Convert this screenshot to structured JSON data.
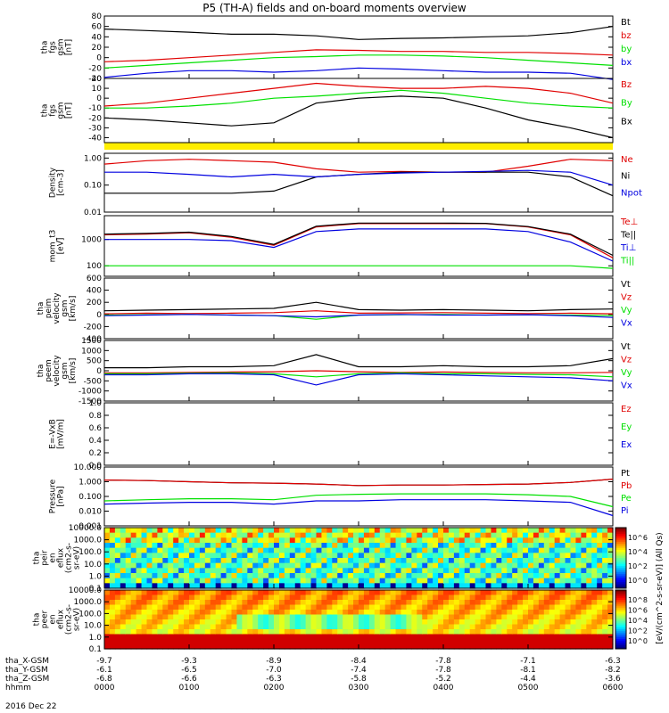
{
  "title": "P5 (TH-A) fields and on-board moments overview",
  "date_label": "2016 Dec 22",
  "footer": {
    "rows": [
      {
        "label": "tha_X-GSM",
        "values": [
          "-9.7",
          "-9.3",
          "-8.9",
          "-8.4",
          "-7.8",
          "-7.1",
          "-6.3"
        ]
      },
      {
        "label": "tha_Y-GSM",
        "values": [
          "-6.1",
          "-6.5",
          "-7.0",
          "-7.4",
          "-7.8",
          "-8.1",
          "-8.2"
        ]
      },
      {
        "label": "tha_Z-GSM",
        "values": [
          "-6.8",
          "-6.6",
          "-6.3",
          "-5.8",
          "-5.2",
          "-4.4",
          "-3.6"
        ]
      },
      {
        "label": "hhmm",
        "values": [
          "0000",
          "0100",
          "0200",
          "0300",
          "0400",
          "0500",
          "0600"
        ]
      }
    ]
  },
  "colors": {
    "black": "#000000",
    "red": "#e00000",
    "green": "#00e000",
    "blue": "#0000e0",
    "yellow": "#ffee00"
  },
  "chart_data": [
    {
      "type": "line",
      "ylabel_lines": [
        "tha",
        "fgs",
        "gsm",
        "[nT]"
      ],
      "ylim": [
        -40,
        80
      ],
      "yticks": [
        "80",
        "60",
        "40",
        "20",
        "0",
        "-20",
        "-40"
      ],
      "legend": [
        "Bt",
        "bz",
        "by",
        "bx"
      ],
      "x": [
        0,
        0.5,
        1,
        1.5,
        2,
        2.5,
        3,
        3.5,
        4,
        4.5,
        5,
        5.5,
        6
      ],
      "series": [
        {
          "name": "Bt",
          "color": "#000000",
          "values": [
            55,
            52,
            49,
            45,
            45,
            42,
            35,
            37,
            38,
            40,
            42,
            48,
            60
          ]
        },
        {
          "name": "bz",
          "color": "#e00000",
          "values": [
            -8,
            -5,
            0,
            5,
            10,
            15,
            14,
            12,
            12,
            10,
            10,
            8,
            5
          ]
        },
        {
          "name": "by",
          "color": "#00e000",
          "values": [
            -20,
            -15,
            -10,
            -5,
            0,
            2,
            5,
            5,
            3,
            0,
            -5,
            -10,
            -15
          ]
        },
        {
          "name": "bx",
          "color": "#0000e0",
          "values": [
            -38,
            -30,
            -25,
            -25,
            -28,
            -25,
            -20,
            -22,
            -25,
            -28,
            -28,
            -30,
            -42
          ]
        }
      ]
    },
    {
      "type": "line",
      "ylabel_lines": [
        "tha",
        "fgs",
        "gsm",
        "[nT]"
      ],
      "ylim": [
        -45,
        20
      ],
      "yticks": [
        "20",
        "10",
        "0",
        "-10",
        "-20",
        "-30",
        "-40"
      ],
      "legend": [
        "Bz",
        "By",
        "Bx"
      ],
      "x": [
        0,
        0.5,
        1,
        1.5,
        2,
        2.5,
        3,
        3.5,
        4,
        4.5,
        5,
        5.5,
        6
      ],
      "series": [
        {
          "name": "Bz",
          "color": "#e00000",
          "values": [
            -8,
            -5,
            0,
            5,
            10,
            15,
            12,
            10,
            10,
            12,
            10,
            5,
            -5
          ]
        },
        {
          "name": "By",
          "color": "#00e000",
          "values": [
            -10,
            -10,
            -8,
            -5,
            0,
            2,
            5,
            8,
            5,
            0,
            -5,
            -8,
            -10
          ]
        },
        {
          "name": "Bx",
          "color": "#000000",
          "values": [
            -20,
            -22,
            -25,
            -28,
            -25,
            -5,
            0,
            2,
            0,
            -10,
            -22,
            -30,
            -40
          ]
        }
      ]
    },
    {
      "type": "line",
      "ylabel_lines": [
        "Density",
        "[cm-3]"
      ],
      "ylim": [
        0.01,
        1.5
      ],
      "yscale": "log",
      "yticks": [
        "1.00",
        "0.10",
        "0.01"
      ],
      "legend": [
        "Ne",
        "Ni",
        "Npot"
      ],
      "x": [
        0,
        0.5,
        1,
        1.5,
        2,
        2.5,
        3,
        3.5,
        4,
        4.5,
        5,
        5.5,
        6
      ],
      "series": [
        {
          "name": "Ne",
          "color": "#e00000",
          "values": [
            0.6,
            0.8,
            0.9,
            0.8,
            0.7,
            0.4,
            0.3,
            0.32,
            0.3,
            0.3,
            0.5,
            0.9,
            0.8
          ]
        },
        {
          "name": "Ni",
          "color": "#000000",
          "values": [
            0.05,
            0.05,
            0.05,
            0.05,
            0.06,
            0.2,
            0.25,
            0.3,
            0.3,
            0.3,
            0.3,
            0.2,
            0.04
          ]
        },
        {
          "name": "Npot",
          "color": "#0000e0",
          "values": [
            0.3,
            0.3,
            0.25,
            0.2,
            0.25,
            0.2,
            0.25,
            0.28,
            0.3,
            0.32,
            0.35,
            0.3,
            0.1
          ]
        }
      ]
    },
    {
      "type": "line",
      "ylabel_lines": [
        "mom_t3",
        "[eV]"
      ],
      "ylim": [
        40,
        8000
      ],
      "yscale": "log",
      "yticks": [
        "1000",
        "100"
      ],
      "legend": [
        "Te⊥",
        "Te||",
        "Ti⊥",
        "Ti||"
      ],
      "x": [
        0,
        0.5,
        1,
        1.5,
        2,
        2.5,
        3,
        3.5,
        4,
        4.5,
        5,
        5.5,
        6
      ],
      "series": [
        {
          "name": "Te⊥",
          "color": "#e00000",
          "values": [
            1500,
            1600,
            1800,
            1200,
            600,
            3000,
            4000,
            4000,
            4000,
            4000,
            3000,
            1500,
            200
          ]
        },
        {
          "name": "Te||",
          "color": "#000000",
          "values": [
            1600,
            1700,
            1900,
            1300,
            650,
            3200,
            4200,
            4200,
            4200,
            4100,
            3100,
            1600,
            250
          ]
        },
        {
          "name": "Ti⊥",
          "color": "#0000e0",
          "values": [
            1000,
            1000,
            1000,
            900,
            500,
            2000,
            2500,
            2500,
            2500,
            2500,
            2000,
            800,
            150
          ]
        },
        {
          "name": "Ti||",
          "color": "#00e000",
          "values": [
            100,
            100,
            100,
            100,
            100,
            100,
            100,
            100,
            100,
            100,
            100,
            100,
            80
          ]
        }
      ]
    },
    {
      "type": "line",
      "ylabel_lines": [
        "tha",
        "peim",
        "velocity",
        "gsm",
        "[km/s]"
      ],
      "ylim": [
        -400,
        600
      ],
      "yticks": [
        "600",
        "400",
        "200",
        "0",
        "-200",
        "-400"
      ],
      "legend": [
        "Vt",
        "Vz",
        "Vy",
        "Vx"
      ],
      "x": [
        0,
        0.5,
        1,
        1.5,
        2,
        2.5,
        3,
        3.5,
        4,
        4.5,
        5,
        5.5,
        6
      ],
      "series": [
        {
          "name": "Vt",
          "color": "#000000",
          "values": [
            60,
            70,
            80,
            90,
            100,
            200,
            80,
            70,
            80,
            70,
            60,
            80,
            90
          ]
        },
        {
          "name": "Vz",
          "color": "#e00000",
          "values": [
            10,
            20,
            15,
            20,
            30,
            60,
            20,
            25,
            30,
            20,
            15,
            20,
            10
          ]
        },
        {
          "name": "Vy",
          "color": "#00e000",
          "values": [
            -10,
            -5,
            0,
            -10,
            -20,
            -80,
            -10,
            -5,
            0,
            -10,
            -5,
            -10,
            -20
          ]
        },
        {
          "name": "Vx",
          "color": "#0000e0",
          "values": [
            -20,
            -10,
            0,
            -10,
            -20,
            -40,
            -10,
            0,
            -10,
            -10,
            -5,
            -20,
            -50
          ]
        }
      ]
    },
    {
      "type": "line",
      "ylabel_lines": [
        "tha",
        "peem",
        "velocity",
        "gsm",
        "[km/s]"
      ],
      "ylim": [
        -1500,
        1500
      ],
      "yticks": [
        "1500",
        "1000",
        "500",
        "0",
        "-500",
        "-1000",
        "-1500"
      ],
      "legend": [
        "Vt",
        "Vz",
        "Vy",
        "Vx"
      ],
      "x": [
        0,
        0.5,
        1,
        1.5,
        2,
        2.5,
        3,
        3.5,
        4,
        4.5,
        5,
        5.5,
        6
      ],
      "series": [
        {
          "name": "Vt",
          "color": "#000000",
          "values": [
            150,
            150,
            200,
            200,
            250,
            800,
            200,
            200,
            250,
            200,
            200,
            250,
            600
          ]
        },
        {
          "name": "Vz",
          "color": "#e00000",
          "values": [
            -100,
            -100,
            -80,
            -60,
            -50,
            0,
            -50,
            -80,
            -60,
            -80,
            -100,
            -100,
            -80
          ]
        },
        {
          "name": "Vy",
          "color": "#00e000",
          "values": [
            -150,
            -150,
            -120,
            -100,
            -150,
            -300,
            -150,
            -100,
            -150,
            -150,
            -180,
            -200,
            -300
          ]
        },
        {
          "name": "Vx",
          "color": "#0000e0",
          "values": [
            -200,
            -200,
            -150,
            -150,
            -200,
            -700,
            -200,
            -150,
            -200,
            -250,
            -300,
            -350,
            -500
          ]
        }
      ]
    },
    {
      "type": "line",
      "ylabel_lines": [
        "E=-VxB",
        "[mV/m]"
      ],
      "ylim": [
        0,
        1
      ],
      "yticks": [
        "1.0",
        "0.8",
        "0.6",
        "0.4",
        "0.2",
        "0.0"
      ],
      "legend": [
        "Ez",
        "Ey",
        "Ex"
      ],
      "x": [],
      "series": [
        {
          "name": "Ez",
          "color": "#e00000",
          "values": []
        },
        {
          "name": "Ey",
          "color": "#00e000",
          "values": []
        },
        {
          "name": "Ex",
          "color": "#0000e0",
          "values": []
        }
      ]
    },
    {
      "type": "line",
      "ylabel_lines": [
        "Pressure",
        "[nPa]"
      ],
      "ylim": [
        0.001,
        10
      ],
      "yscale": "log",
      "yticks": [
        "10.000",
        "1.000",
        "0.100",
        "0.010",
        "0.001"
      ],
      "legend": [
        "Pt",
        "Pb",
        "Pe",
        "Pi"
      ],
      "x": [
        0,
        0.5,
        1,
        1.5,
        2,
        2.5,
        3,
        3.5,
        4,
        4.5,
        5,
        5.5,
        6
      ],
      "series": [
        {
          "name": "Pt",
          "color": "#000000",
          "values": [
            1.3,
            1.2,
            1.0,
            0.85,
            0.8,
            0.7,
            0.55,
            0.6,
            0.6,
            0.65,
            0.7,
            0.9,
            1.5
          ]
        },
        {
          "name": "Pb",
          "color": "#e00000",
          "values": [
            1.3,
            1.2,
            1.0,
            0.85,
            0.8,
            0.7,
            0.55,
            0.6,
            0.6,
            0.65,
            0.7,
            0.9,
            1.5
          ]
        },
        {
          "name": "Pe",
          "color": "#00e000",
          "values": [
            0.05,
            0.06,
            0.07,
            0.07,
            0.06,
            0.12,
            0.14,
            0.15,
            0.15,
            0.15,
            0.13,
            0.1,
            0.02
          ]
        },
        {
          "name": "Pi",
          "color": "#0000e0",
          "values": [
            0.03,
            0.035,
            0.04,
            0.04,
            0.03,
            0.05,
            0.05,
            0.06,
            0.06,
            0.06,
            0.05,
            0.04,
            0.005
          ]
        }
      ]
    },
    {
      "type": "heatmap",
      "ylabel_lines": [
        "tha",
        "peir",
        "en",
        "eflux",
        "(cm2-s-",
        "sr-eV)"
      ],
      "ylim": [
        0.1,
        10000
      ],
      "yscale": "log",
      "yticks": [
        "10000.0",
        "1000.0",
        "100.0",
        "10.0",
        "1.0",
        "0.1"
      ],
      "colorbar_ticks": [
        "10^6",
        "10^4",
        "10^2",
        "10^0"
      ]
    },
    {
      "type": "heatmap",
      "ylabel_lines": [
        "tha",
        "peer",
        "en",
        "eflux",
        "(cm2-s-",
        "sr-eV)"
      ],
      "ylim": [
        0.1,
        10000
      ],
      "yscale": "log",
      "yticks": [
        "10000.0",
        "1000.0",
        "100.0",
        "10.0",
        "1.0",
        "0.1"
      ],
      "colorbar_ticks": [
        "10^8",
        "10^6",
        "10^4",
        "10^2",
        "10^0"
      ]
    }
  ],
  "colorbar_label": "[eV/(cm^2-s-sr-eV)] (All Qs)"
}
